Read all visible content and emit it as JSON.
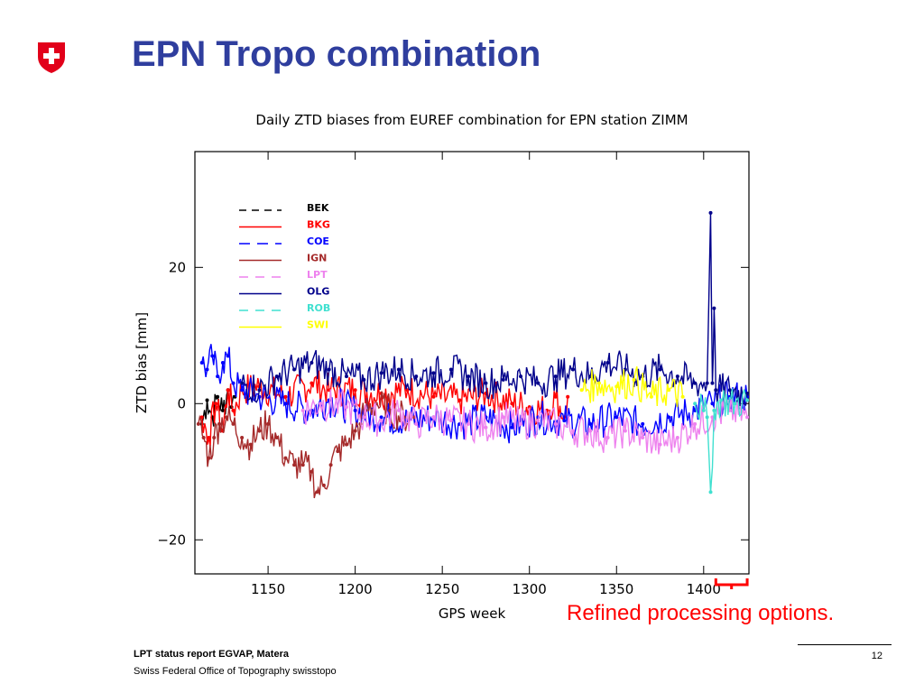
{
  "slide": {
    "title": "EPN Tropo combination",
    "note": "Refined processing options.",
    "footer_bold": "LPT status report EGVAP, Matera",
    "footer": "Swiss Federal Office of Topography swisstopo",
    "page_number": "12"
  },
  "logo": {
    "icon": "swiss-cross-shield-icon",
    "color": "#e2001a"
  },
  "colors": {
    "title": "#2f3e9e",
    "note": "#ff0000"
  },
  "chart_data": {
    "type": "line",
    "title": "Daily ZTD biases from EUREF combination for EPN station ZIMM",
    "xlabel": "GPS week",
    "ylabel": "ZTD bias [mm]",
    "xlim": [
      1108,
      1426
    ],
    "ylim": [
      -25,
      37
    ],
    "xticks": [
      1150,
      1200,
      1250,
      1300,
      1350,
      1400
    ],
    "yticks": [
      -20,
      0,
      20
    ],
    "grid": false,
    "legend_position": "top-left",
    "bracket": {
      "from": 1407,
      "to": 1425
    },
    "series": [
      {
        "name": "BEK",
        "color": "#000000",
        "dash": "8,6",
        "data": [
          [
            1112,
            -3
          ],
          [
            1115,
            0.5
          ],
          [
            1118,
            -2
          ],
          [
            1121,
            1
          ],
          [
            1124,
            -1
          ],
          [
            1127,
            2
          ],
          [
            1129,
            -0.5
          ],
          [
            1131,
            1
          ]
        ]
      },
      {
        "name": "BKG",
        "color": "#ff0000",
        "dash": "",
        "data": [
          [
            1112,
            -2
          ],
          [
            1116,
            -5
          ],
          [
            1120,
            0
          ],
          [
            1124,
            -4
          ],
          [
            1127,
            2
          ],
          [
            1130,
            -1
          ],
          [
            1135,
            2
          ],
          [
            1145,
            2.5
          ],
          [
            1160,
            1
          ],
          [
            1175,
            3
          ],
          [
            1185,
            2
          ],
          [
            1200,
            2
          ],
          [
            1215,
            1.5
          ],
          [
            1230,
            2
          ],
          [
            1245,
            1
          ],
          [
            1260,
            0.5
          ],
          [
            1275,
            1.5
          ],
          [
            1290,
            0
          ],
          [
            1300,
            -0.5
          ],
          [
            1310,
            -1
          ],
          [
            1315,
            1
          ],
          [
            1320,
            -2
          ],
          [
            1322,
            1
          ]
        ]
      },
      {
        "name": "COE",
        "color": "#0000ff",
        "dash": "12,8",
        "data": [
          [
            1112,
            6
          ],
          [
            1115,
            5
          ],
          [
            1118,
            7
          ],
          [
            1121,
            4
          ],
          [
            1124,
            6
          ],
          [
            1127,
            7
          ],
          [
            1130,
            3
          ],
          [
            1135,
            2
          ],
          [
            1145,
            1
          ],
          [
            1160,
            0
          ],
          [
            1175,
            -1
          ],
          [
            1185,
            0.5
          ],
          [
            1200,
            -1
          ],
          [
            1215,
            -2
          ],
          [
            1230,
            -2.5
          ],
          [
            1245,
            -2
          ],
          [
            1260,
            -3
          ],
          [
            1275,
            -2
          ],
          [
            1290,
            -3.5
          ],
          [
            1305,
            -2
          ],
          [
            1320,
            -2.5
          ],
          [
            1335,
            -3
          ],
          [
            1350,
            -2
          ],
          [
            1365,
            -3
          ],
          [
            1380,
            -2
          ],
          [
            1395,
            -1
          ],
          [
            1405,
            0
          ],
          [
            1415,
            1
          ],
          [
            1425,
            1
          ]
        ]
      },
      {
        "name": "IGN",
        "color": "#a52a2a",
        "dash": "",
        "data": [
          [
            1110,
            -3
          ],
          [
            1113,
            -5
          ],
          [
            1116,
            -8
          ],
          [
            1119,
            -5
          ],
          [
            1122,
            -3
          ],
          [
            1126,
            -2
          ],
          [
            1130,
            -3
          ],
          [
            1135,
            -5
          ],
          [
            1140,
            -6
          ],
          [
            1145,
            -4
          ],
          [
            1150,
            -3
          ],
          [
            1155,
            -5
          ],
          [
            1160,
            -8
          ],
          [
            1165,
            -9
          ],
          [
            1170,
            -9
          ],
          [
            1175,
            -10
          ],
          [
            1178,
            -13
          ],
          [
            1182,
            -12
          ],
          [
            1186,
            -9
          ],
          [
            1190,
            -7
          ],
          [
            1195,
            -6
          ],
          [
            1200,
            -4
          ],
          [
            1203,
            -3
          ],
          [
            1206,
            -1
          ],
          [
            1212,
            0
          ],
          [
            1220,
            -1
          ],
          [
            1228,
            -2
          ],
          [
            1234,
            -2
          ]
        ]
      },
      {
        "name": "LPT",
        "color": "#ee82ee",
        "dash": "10,8",
        "data": [
          [
            1170,
            -1
          ],
          [
            1180,
            0
          ],
          [
            1195,
            -0.5
          ],
          [
            1205,
            -2
          ],
          [
            1215,
            -2.5
          ],
          [
            1225,
            -1
          ],
          [
            1235,
            -3
          ],
          [
            1245,
            -2
          ],
          [
            1255,
            -2.5
          ],
          [
            1265,
            -3
          ],
          [
            1275,
            -3.5
          ],
          [
            1285,
            -2
          ],
          [
            1295,
            -3
          ],
          [
            1305,
            -2.5
          ],
          [
            1315,
            -3
          ],
          [
            1325,
            -4
          ],
          [
            1335,
            -4
          ],
          [
            1345,
            -5
          ],
          [
            1355,
            -4
          ],
          [
            1365,
            -5
          ],
          [
            1375,
            -6
          ],
          [
            1385,
            -5
          ],
          [
            1395,
            -3
          ],
          [
            1405,
            -2
          ],
          [
            1415,
            -1
          ],
          [
            1425,
            -2
          ]
        ]
      },
      {
        "name": "OLG",
        "color": "#00008b",
        "dash": "",
        "data": [
          [
            1135,
            3
          ],
          [
            1145,
            2
          ],
          [
            1155,
            4
          ],
          [
            1165,
            5
          ],
          [
            1175,
            6
          ],
          [
            1185,
            5
          ],
          [
            1195,
            4
          ],
          [
            1205,
            3.5
          ],
          [
            1215,
            4.5
          ],
          [
            1225,
            5
          ],
          [
            1235,
            4
          ],
          [
            1245,
            4.5
          ],
          [
            1255,
            5
          ],
          [
            1265,
            4
          ],
          [
            1275,
            3
          ],
          [
            1285,
            3.5
          ],
          [
            1295,
            4
          ],
          [
            1305,
            3
          ],
          [
            1315,
            4
          ],
          [
            1325,
            5
          ],
          [
            1335,
            4
          ],
          [
            1345,
            6
          ],
          [
            1355,
            5
          ],
          [
            1365,
            4
          ],
          [
            1375,
            5
          ],
          [
            1385,
            4
          ],
          [
            1395,
            3
          ],
          [
            1402,
            3
          ],
          [
            1404,
            28
          ],
          [
            1405,
            3
          ],
          [
            1406,
            14
          ],
          [
            1407,
            2
          ],
          [
            1415,
            2
          ],
          [
            1425,
            1.5
          ]
        ]
      },
      {
        "name": "ROB",
        "color": "#40e0d0",
        "dash": "10,8",
        "data": [
          [
            1395,
            0
          ],
          [
            1400,
            -1
          ],
          [
            1402,
            -2
          ],
          [
            1404,
            -13
          ],
          [
            1406,
            -1
          ],
          [
            1410,
            0.5
          ],
          [
            1418,
            0
          ],
          [
            1425,
            0.5
          ]
        ]
      },
      {
        "name": "SWI",
        "color": "#ffff00",
        "dash": "",
        "data": [
          [
            1330,
            2
          ],
          [
            1340,
            3
          ],
          [
            1350,
            2.5
          ],
          [
            1360,
            3.5
          ],
          [
            1370,
            1
          ],
          [
            1380,
            2
          ],
          [
            1388,
            1
          ]
        ]
      }
    ]
  }
}
